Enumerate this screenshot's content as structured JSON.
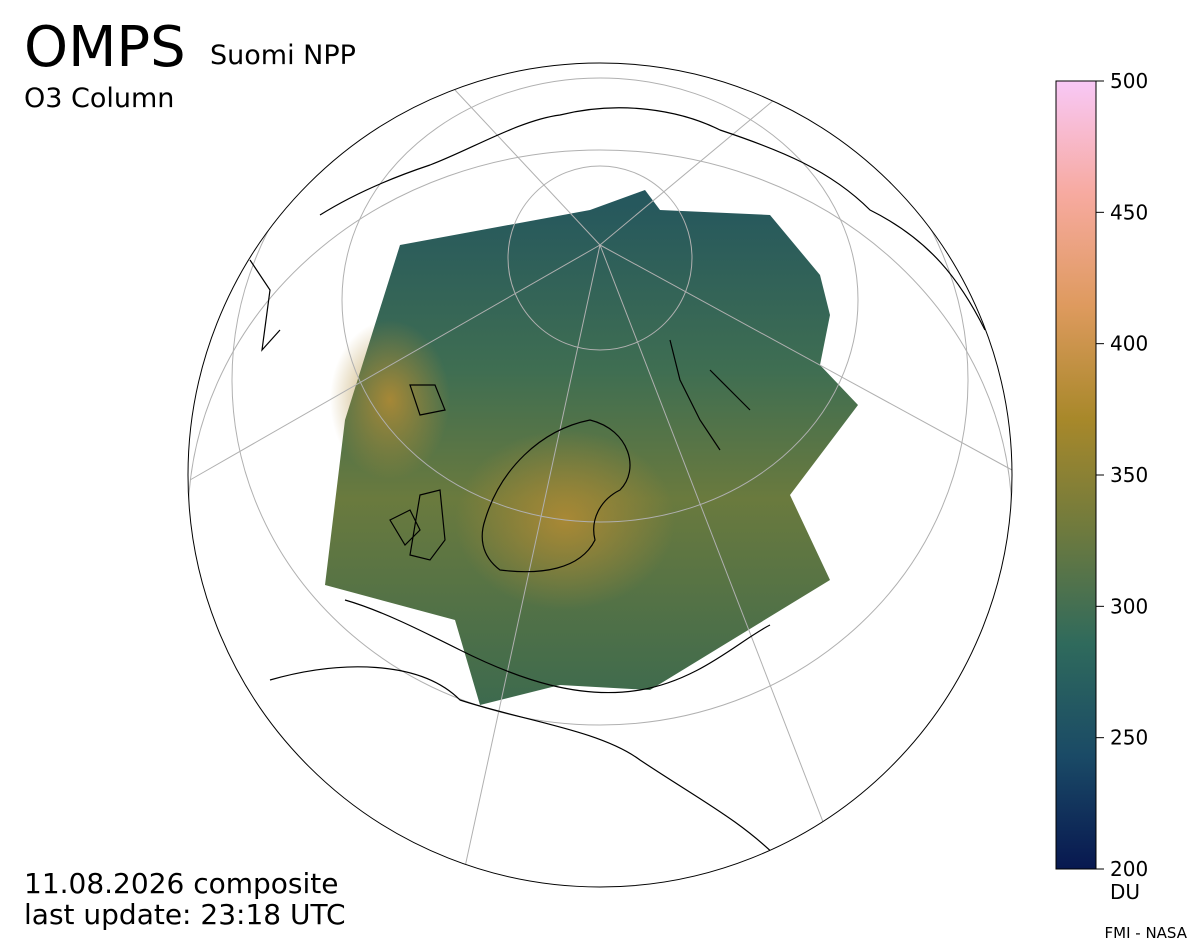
{
  "header": {
    "title": "OMPS",
    "satellite": "Suomi NPP",
    "product": "O3 Column"
  },
  "footer": {
    "date": "11.08.2026 composite",
    "update": "last update: 23:18 UTC",
    "credit": "FMI - NASA"
  },
  "colorbar": {
    "ticks": [
      200,
      250,
      300,
      350,
      400,
      450,
      500
    ],
    "unit": "DU",
    "colors": [
      "#081850",
      "#1a4a66",
      "#2f6a5c",
      "#6e7a3e",
      "#a8882a",
      "#de9a5e",
      "#f7aaa0",
      "#f8c8f6"
    ]
  }
}
